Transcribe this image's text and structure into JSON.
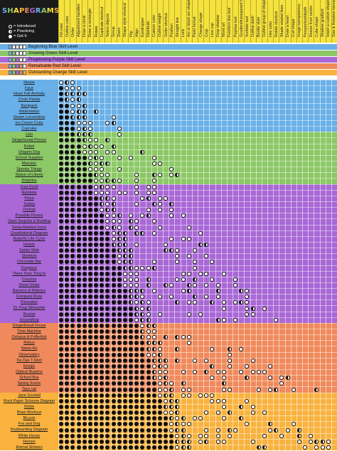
{
  "logo": {
    "text": "SHAPEGRAMS"
  },
  "legend": [
    {
      "symbol": "introduced",
      "label": "= Introduced"
    },
    {
      "symbol": "practicing",
      "label": "= Practicing"
    },
    {
      "symbol": "got_it",
      "label": "= Got It"
    }
  ],
  "skills": [
    "Fill color",
    "Outline color",
    "Order",
    "Adjustment handles",
    "Draw a circle",
    "Draw a rectangle",
    "Rotate",
    "Duplicate shortcut",
    "Select objects",
    "Group",
    "Zoom",
    "Shape style shortcut",
    "Flip",
    "Align",
    "Eyedropper",
    "Distribute",
    "Custom color",
    "Outline weight",
    "Order shortcut",
    "Position",
    "Straight line",
    "Lock",
    "Arc or block arc shape",
    "Paint format",
    "Change shape",
    "Crop",
    "Line cap",
    "Drop shadow",
    "Word art",
    "Freeform line tool",
    "Polyline tool",
    "Gradient/transparent fill",
    "Scribble tool",
    "Outline dash",
    "Border style",
    "Outline group of shapes",
    "Hex color",
    "Rotate shortcut",
    "Shade related lines",
    "Draw a heart",
    "Curl shape",
    "Image transparency",
    "Perspective/depth",
    "Resize from center",
    "Cube shape",
    "Shadow gradient",
    "Insert a custom shape",
    "Size & Rotation format"
  ],
  "levels": [
    {
      "label": "Beginning Blue Skill Level",
      "color": "#6ab0e8",
      "boxes": [
        1,
        0,
        0,
        0,
        0
      ]
    },
    {
      "label": "Growing Green Skill Level",
      "color": "#8cc866",
      "boxes": [
        1,
        1,
        0,
        0,
        0
      ]
    },
    {
      "label": "Progressing Purple Skill Level",
      "color": "#a968d6",
      "boxes": [
        1,
        1,
        1,
        0,
        0
      ]
    },
    {
      "label": "Remarkable Red Skill Level",
      "color": "#f08a5c",
      "boxes": [
        1,
        1,
        1,
        1,
        0
      ]
    },
    {
      "label": "Outstanding Orange Skill Level",
      "color": "#f9b23e",
      "boxes": [
        1,
        1,
        1,
        1,
        1
      ]
    }
  ],
  "sections": [
    {
      "name": "blue",
      "color": "#6ab0e8",
      "rows": [
        "House",
        "Face",
        "Heart Felt Animals",
        "Circle Panda",
        "Backpack",
        "Watermelon",
        "Steam Locomotive",
        "Ice Cream Cone",
        "Cupcake"
      ]
    },
    {
      "name": "green",
      "color": "#8cc866",
      "rows": [
        "Lion",
        "Gingerbread Person",
        "Robot",
        "Origami Dog",
        "School Supplies",
        "Mansion",
        "Spooky Things",
        "Statue of Liberty",
        "Dolphins"
      ]
    },
    {
      "name": "purple",
      "color": "#a968d6",
      "rows": [
        "Fast Food",
        "Rainbow",
        "Pizza",
        "Turkey",
        "Portrait",
        "Possible Person",
        "Giant Sequoia & Building",
        "Snow-Related Icons",
        "Quadrilateral Diagram",
        "Butterfly Life Cycle",
        "Hearts",
        "Spider Web",
        "Skeleton",
        "Chocolate Bar",
        "Fireplace",
        "There Their They're",
        "Crayons",
        "Snow Globe",
        "Banners & Ribbons",
        "Compass Rose",
        "Pancakes",
        "Dr. King Silhouette",
        "Rocket",
        "Groundhog"
      ]
    },
    {
      "name": "red",
      "color": "#f08a5c",
      "rows": [
        "Gingerbread House",
        "Time Machine",
        "Octopus & Pufferfish",
        "Rebus",
        "Name Art",
        "Observatory",
        "Tie Dye T-Shirt",
        "Emojis",
        "Optical Illusions",
        "School Bus",
        "Spring Scene",
        "Taco cat"
      ]
    },
    {
      "name": "orange",
      "color": "#f9b23e",
      "rows": [
        "Jane Goodall",
        "Rock Paper Scissors Diagram",
        "Globe",
        "Brain Workout",
        "Bicycle",
        "Fox and Dog",
        "Keyboarding Diagram",
        "White House",
        "Heroes",
        "Animal Stickers"
      ]
    }
  ]
}
